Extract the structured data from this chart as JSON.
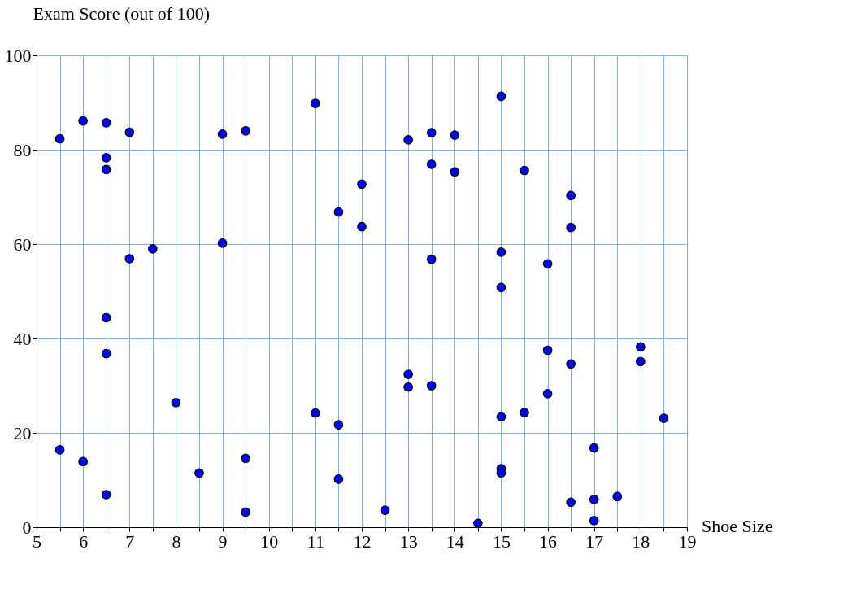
{
  "chart_data": {
    "type": "scatter",
    "xlabel": "Shoe Size",
    "ylabel": "Exam Score (out of 100)",
    "x": [
      5.5,
      5.5,
      6,
      6,
      6.5,
      6.5,
      6.5,
      6.5,
      6.5,
      6.5,
      7,
      7,
      7.5,
      8,
      8.5,
      9,
      9,
      9.5,
      9.5,
      9.5,
      11,
      11,
      11.5,
      11.5,
      11.5,
      12,
      12,
      12.5,
      13,
      13,
      13,
      13.5,
      13.5,
      13.5,
      13.5,
      14,
      14,
      14.5,
      15,
      15,
      15,
      15,
      15,
      15,
      15.5,
      15.5,
      16,
      16,
      16,
      16.5,
      16.5,
      16.5,
      16.5,
      17,
      17,
      17,
      17.5,
      18,
      18,
      18.5
    ],
    "series": [
      {
        "color": "#0000ff",
        "values": [
          82.3,
          16.4,
          86.1,
          13.9,
          85.7,
          78.3,
          75.8,
          44.4,
          36.8,
          6.9,
          83.7,
          56.9,
          59,
          26.4,
          11.5,
          83.3,
          60.2,
          84,
          14.6,
          3.2,
          89.8,
          24.2,
          66.8,
          21.7,
          10.2,
          72.7,
          63.7,
          3.6,
          82.1,
          32.4,
          29.7,
          83.6,
          76.9,
          56.8,
          30,
          83.1,
          75.3,
          0.8,
          91.3,
          58.3,
          50.8,
          23.4,
          12.4,
          11.5,
          75.6,
          24.3,
          55.8,
          37.5,
          28.3,
          70.3,
          63.5,
          34.6,
          5.3,
          16.8,
          5.9,
          1.4,
          6.5,
          38.2,
          35.1,
          23.1
        ]
      }
    ],
    "xlim": [
      5,
      19
    ],
    "ylim": [
      0,
      100
    ],
    "xticks": [
      5,
      {
        "value": 5.5,
        "label": null
      },
      6,
      {
        "value": 6.5,
        "label": null
      },
      7,
      {
        "value": 7.5,
        "label": null
      },
      8,
      {
        "value": 8.5,
        "label": null
      },
      9,
      {
        "value": 9.5,
        "label": null
      },
      10,
      {
        "value": 10.5,
        "label": null
      },
      11,
      {
        "value": 11.5,
        "label": null
      },
      12,
      {
        "value": 12.5,
        "label": null
      },
      13,
      {
        "value": 13.5,
        "label": null
      },
      14,
      {
        "value": 14.5,
        "label": null
      },
      15,
      {
        "value": 15.5,
        "label": null
      },
      16,
      {
        "value": 16.5,
        "label": null
      },
      17,
      {
        "value": 17.5,
        "label": null
      },
      18,
      {
        "value": 18.5,
        "label": null
      },
      19
    ],
    "yticks": [
      0,
      20,
      40,
      60,
      80,
      100
    ],
    "grid": true,
    "marker": "circle"
  }
}
